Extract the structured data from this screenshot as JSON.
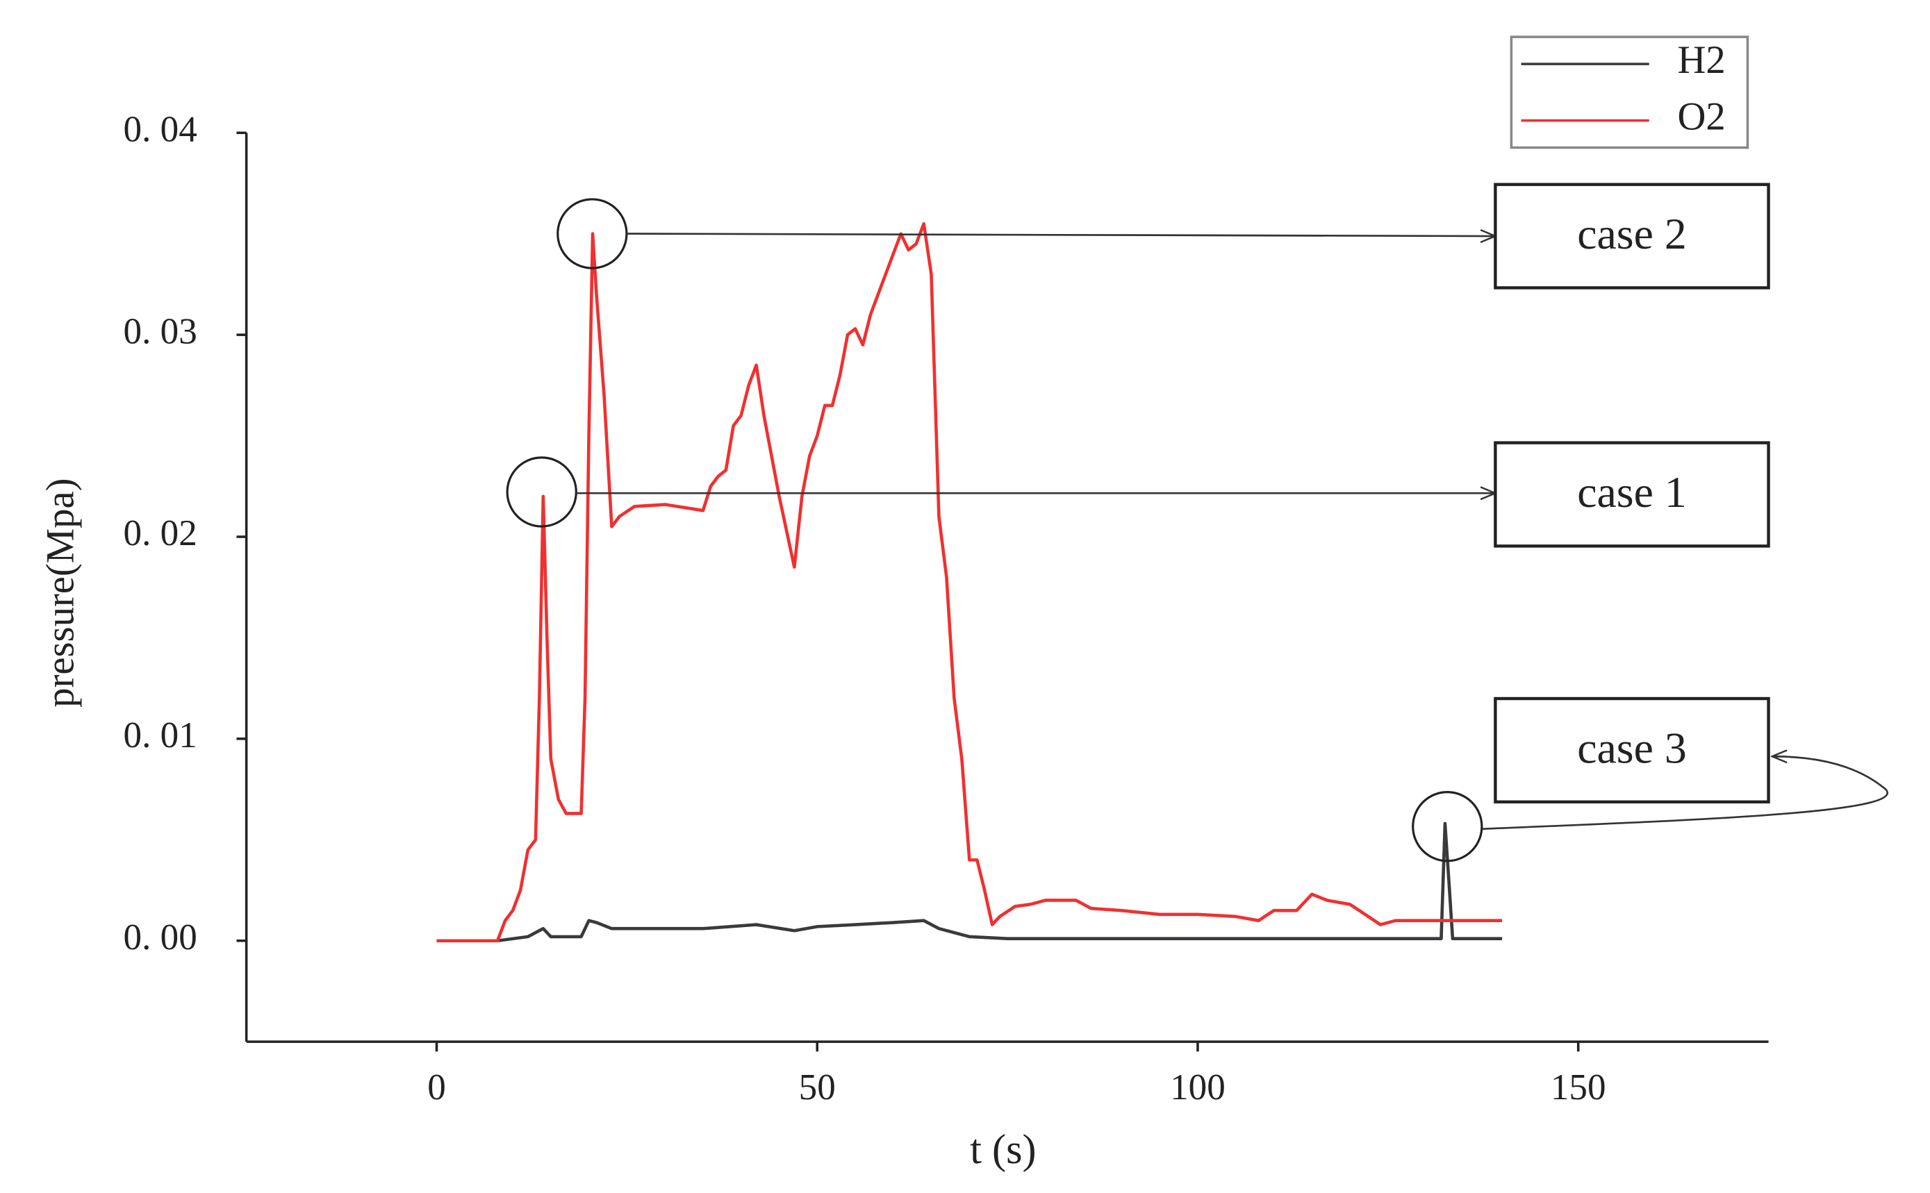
{
  "chart_data": {
    "type": "line",
    "x_label": "t (s)",
    "y_label": "pressure(Mpa)",
    "xlim": [
      -25,
      175
    ],
    "xticks": [
      0,
      50,
      100,
      150
    ],
    "ylim": [
      -0.005,
      0.04
    ],
    "yticks": [
      {
        "value": 0,
        "label": "0. 00"
      },
      {
        "value": 0.01,
        "label": "0. 01"
      },
      {
        "value": 0.02,
        "label": "0. 02"
      },
      {
        "value": 0.03,
        "label": "0. 03"
      },
      {
        "value": 0.04,
        "label": "0. 04"
      }
    ],
    "legend": "top-right",
    "series": [
      {
        "name": "H2",
        "color": "#3a3a3a",
        "x": [
          0,
          8,
          12,
          14,
          15,
          19,
          20,
          21,
          23,
          30,
          35,
          42,
          47,
          50,
          55,
          60,
          64,
          66,
          70,
          75,
          80,
          100,
          130,
          132,
          132.5,
          133,
          133.5,
          140
        ],
        "values": [
          0,
          0,
          0.0002,
          0.0006,
          0.0002,
          0.0002,
          0.001,
          0.0009,
          0.0006,
          0.0006,
          0.0006,
          0.0008,
          0.0005,
          0.0007,
          0.0008,
          0.0009,
          0.001,
          0.0006,
          0.0002,
          0.0001,
          0.0001,
          0.0001,
          0.0001,
          0.0001,
          0.0058,
          0.003,
          0.0001,
          0.0001
        ]
      },
      {
        "name": "O2",
        "color": "#f03030",
        "x": [
          0,
          8,
          9,
          10,
          11,
          12,
          13,
          13.5,
          14,
          14.5,
          15,
          16,
          17,
          19,
          19.5,
          20,
          20.5,
          21,
          22,
          23,
          24,
          26,
          30,
          35,
          36,
          37,
          38,
          39,
          40,
          41,
          42,
          43,
          45,
          47,
          48,
          49,
          50,
          51,
          52,
          53,
          54,
          55,
          56,
          57,
          59,
          60,
          61,
          62,
          63,
          64,
          65,
          66,
          67,
          68,
          69,
          70,
          71,
          72,
          73,
          74,
          76,
          78,
          80,
          84,
          86,
          90,
          95,
          100,
          105,
          108,
          110,
          113,
          115,
          117,
          120,
          122,
          124,
          126,
          130,
          135,
          140
        ],
        "values": [
          0,
          0,
          0.001,
          0.0015,
          0.0025,
          0.0045,
          0.005,
          0.012,
          0.022,
          0.015,
          0.009,
          0.007,
          0.0063,
          0.0063,
          0.012,
          0.025,
          0.035,
          0.032,
          0.027,
          0.0205,
          0.021,
          0.0215,
          0.0216,
          0.0213,
          0.0225,
          0.023,
          0.0233,
          0.0255,
          0.026,
          0.0275,
          0.0285,
          0.026,
          0.022,
          0.0185,
          0.022,
          0.024,
          0.025,
          0.0265,
          0.0265,
          0.028,
          0.03,
          0.0303,
          0.0295,
          0.031,
          0.033,
          0.034,
          0.035,
          0.0342,
          0.0345,
          0.0355,
          0.033,
          0.021,
          0.018,
          0.012,
          0.009,
          0.004,
          0.004,
          0.0025,
          0.0008,
          0.0012,
          0.0017,
          0.0018,
          0.002,
          0.002,
          0.0016,
          0.0015,
          0.0013,
          0.0013,
          0.0012,
          0.001,
          0.0015,
          0.0015,
          0.0023,
          0.002,
          0.0018,
          0.0013,
          0.0008,
          0.001,
          0.001,
          0.001,
          0.001
        ]
      }
    ],
    "annotations": [
      "case 1",
      "case 2",
      "case 3"
    ]
  }
}
